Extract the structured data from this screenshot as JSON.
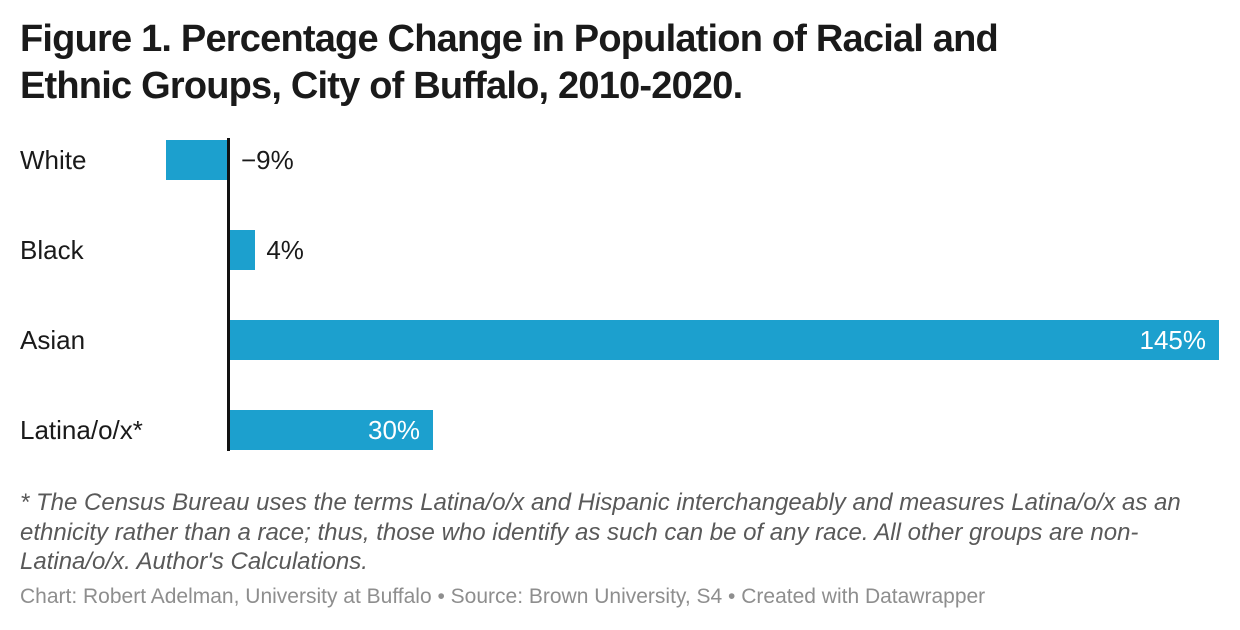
{
  "header": {
    "title_lines": [
      "Figure 1. Percentage Change in Population of Racial and",
      "Ethnic Groups, City of Buffalo, 2010-2020."
    ]
  },
  "chart_data": {
    "type": "bar",
    "orientation": "horizontal",
    "title": "Figure 1. Percentage Change in Population of Racial and Ethnic Groups, City of Buffalo, 2010-2020.",
    "categories": [
      "White",
      "Black",
      "Asian",
      "Latina/o/x*"
    ],
    "values": [
      -9,
      4,
      145,
      30
    ],
    "value_labels": [
      "−9%",
      "4%",
      "145%",
      "30%"
    ],
    "unit": "%",
    "xlim": [
      -9,
      145
    ],
    "baseline": 0,
    "grid": false,
    "legend": false,
    "bar_color": "#1ca0ce",
    "inside_label_color": "#ffffff",
    "outside_label_color": "#1a1a1a"
  },
  "footnote": {
    "lines": [
      "* The Census Bureau uses the terms Latina/o/x and Hispanic interchangeably and measures Latina/o/x as an",
      "ethnicity rather than a race; thus, those who identify as such can be of any race. All other groups are non-",
      "Latina/o/x. Author's Calculations."
    ]
  },
  "attribution": {
    "text": "Chart: Robert Adelman, University at Buffalo • Source: Brown University, S4 • Created with Datawrapper"
  },
  "colors": {
    "bar": "#1ca0ce",
    "axis": "#111111",
    "title": "#1a1a1a",
    "label": "#1a1a1a",
    "footnote": "#595959",
    "attribution": "#8e8e8e",
    "background": "#ffffff"
  }
}
